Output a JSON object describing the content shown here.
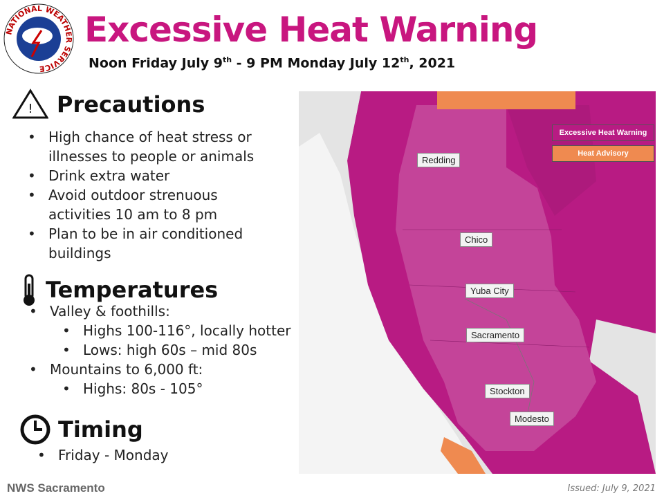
{
  "logo_text": "NATIONAL WEATHER SERVICE",
  "header": {
    "title": "Excessive Heat Warning",
    "subtitle": [
      "Noon Friday July 9",
      "th",
      " - 9 PM Monday July 12",
      "th",
      ", 2021"
    ]
  },
  "sections": [
    {
      "heading": "Precautions",
      "items": [
        {
          "text": "High chance of heat stress or illnesses to people or animals"
        },
        {
          "text": "Drink extra water"
        },
        {
          "text": "Avoid outdoor strenuous activities 10 am to 8 pm"
        },
        {
          "text": "Plan to be in air conditioned buildings"
        }
      ]
    },
    {
      "heading": "Temperatures",
      "items": [
        {
          "text": "Valley & foothills:",
          "sub": [
            "Highs 100-116°, locally hotter",
            "Lows: high 60s – mid 80s"
          ]
        },
        {
          "text": "Mountains to 6,000 ft:",
          "sub": [
            "Highs: 80s - 105°"
          ]
        }
      ]
    },
    {
      "heading": "Timing",
      "items": [
        {
          "text": "Friday - Monday"
        }
      ]
    }
  ],
  "map": {
    "legend": [
      "Excessive Heat Warning",
      "Heat Advisory"
    ],
    "cities": [
      "Redding",
      "Chico",
      "Yuba City",
      "Sacramento",
      "Stockton",
      "Modesto"
    ]
  },
  "footer": {
    "office": "NWS Sacramento",
    "issued": "Issued: July 9, 2021"
  }
}
